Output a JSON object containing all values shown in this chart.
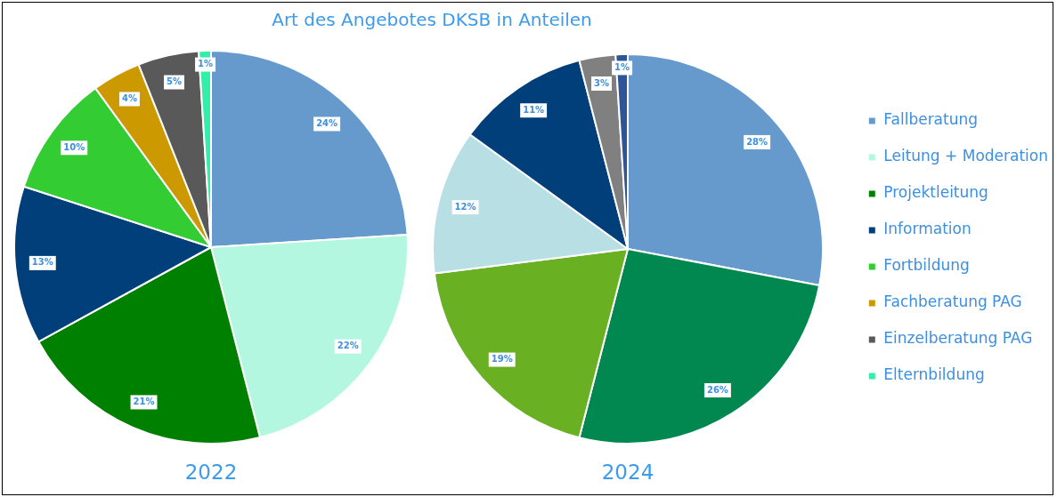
{
  "chart_data": [
    {
      "type": "pie",
      "title": "Art des Angebotes DKSB in Anteilen",
      "subtitle": "2022",
      "legend": "right",
      "categories": [
        "Fallberatung",
        "Leitung + Moderation",
        "Projektleitung",
        "Information",
        "Fortbildung",
        "Fachberatung PAG",
        "Einzelberatung PAG",
        "Elternbildung"
      ],
      "values": [
        24,
        22,
        21,
        13,
        10,
        4,
        5,
        1
      ],
      "value_labels": [
        "24%",
        "22%",
        "21%",
        "13%",
        "10%",
        "4%",
        "5%",
        "1%"
      ],
      "colors": [
        "#6699cc",
        "#b3f7e0",
        "#008000",
        "#003f7a",
        "#33cc33",
        "#cc9900",
        "#595959",
        "#33eeaa"
      ]
    },
    {
      "type": "pie",
      "subtitle": "2024",
      "categories": [
        null,
        null,
        null,
        null,
        null,
        null,
        null
      ],
      "values": [
        28,
        26,
        19,
        12,
        11,
        3,
        1
      ],
      "value_labels": [
        "28%",
        "26%",
        "19%",
        "12%",
        "11%",
        "3%",
        "1%"
      ],
      "colors": [
        "#6699cc",
        "#008850",
        "#6ab023",
        "#b8dfe3",
        "#003f7a",
        "#808080",
        "#2f5597"
      ]
    }
  ]
}
